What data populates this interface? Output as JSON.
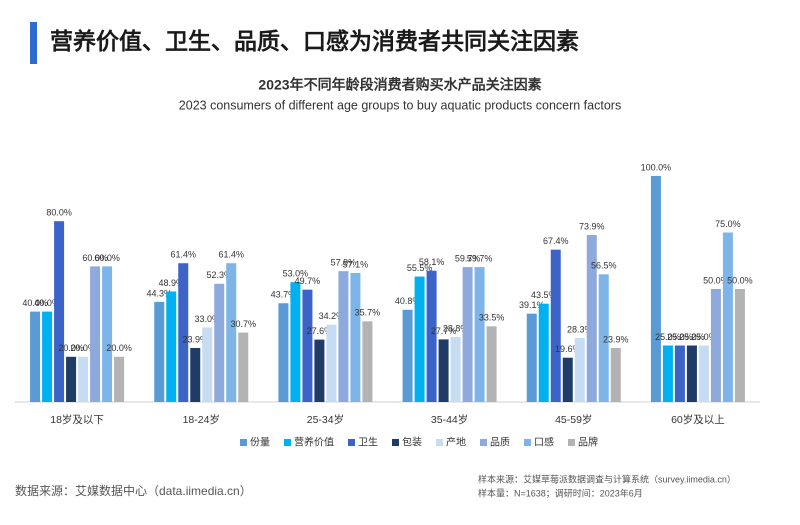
{
  "header": {
    "title": "营养价值、卫生、品质、口感为消费者共同关注因素"
  },
  "chart_data": {
    "type": "bar",
    "title": "2023年不同年龄段消费者购买水产品关注因素",
    "subtitle": "2023 consumers of different age groups to buy aquatic products concern factors",
    "categories": [
      "18岁及以下",
      "18-24岁",
      "25-34岁",
      "35-44岁",
      "45-59岁",
      "60岁及以上"
    ],
    "ylim": [
      0,
      100
    ],
    "legend": "bottom",
    "series": [
      {
        "name": "份量",
        "color": "#5b9bd5",
        "values": [
          40.0,
          44.3,
          43.7,
          40.8,
          39.1,
          100.0
        ],
        "value_labels": [
          "40.0%",
          "44.3%",
          "43.7%",
          "40.8%",
          "39.1%",
          "100.0%"
        ]
      },
      {
        "name": "营养价值",
        "color": "#00b0f0",
        "values": [
          40.0,
          48.9,
          53.0,
          55.5,
          43.5,
          25.0
        ],
        "value_labels": [
          "40.0%",
          "48.9%",
          "53.0%",
          "55.5%",
          "43.5%",
          "25.0%"
        ]
      },
      {
        "name": "卫生",
        "color": "#3c64c8",
        "values": [
          80.0,
          61.4,
          49.7,
          58.1,
          67.4,
          25.0
        ],
        "value_labels": [
          "80.0%",
          "61.4%",
          "49.7%",
          "58.1%",
          "67.4%",
          "25.0%"
        ]
      },
      {
        "name": "包装",
        "color": "#1f3c66",
        "values": [
          20.0,
          23.9,
          27.6,
          27.7,
          19.6,
          25.0
        ],
        "value_labels": [
          "20.0%",
          "23.9%",
          "27.6%",
          "27.7%",
          "19.6%",
          "25.0%"
        ]
      },
      {
        "name": "产地",
        "color": "#c5dcf2",
        "values": [
          20.0,
          33.0,
          34.2,
          28.8,
          28.3,
          25.0
        ],
        "value_labels": [
          "20.0%",
          "33.0%",
          "34.2%",
          "28.8%",
          "28.3%",
          "25.0%"
        ]
      },
      {
        "name": "品质",
        "color": "#8ea9dc",
        "values": [
          60.0,
          52.3,
          57.9,
          59.7,
          73.9,
          50.0
        ],
        "value_labels": [
          "60.0%",
          "52.3%",
          "57.9%",
          "59.7%",
          "73.9%",
          "50.0%"
        ]
      },
      {
        "name": "口感",
        "color": "#7db5e8",
        "values": [
          60.0,
          61.4,
          57.1,
          59.7,
          56.5,
          75.0
        ],
        "value_labels": [
          "60.0%",
          "61.4%",
          "57.1%",
          "59.7%",
          "56.5%",
          "75.0%"
        ]
      },
      {
        "name": "品牌",
        "color": "#b3b3b3",
        "values": [
          20.0,
          30.7,
          35.7,
          33.5,
          23.9,
          50.0
        ],
        "value_labels": [
          "20.0%",
          "30.7%",
          "35.7%",
          "33.5%",
          "23.9%",
          "50.0%"
        ]
      }
    ]
  },
  "footer": {
    "source": "数据来源：艾媒数据中心（data.iimedia.cn）",
    "sample_source": "样本来源：艾媒草莓派数据调查与计算系统（survey.iimedia.cn）",
    "sample_info": "样本量：N=1638；调研时间：2023年6月"
  }
}
